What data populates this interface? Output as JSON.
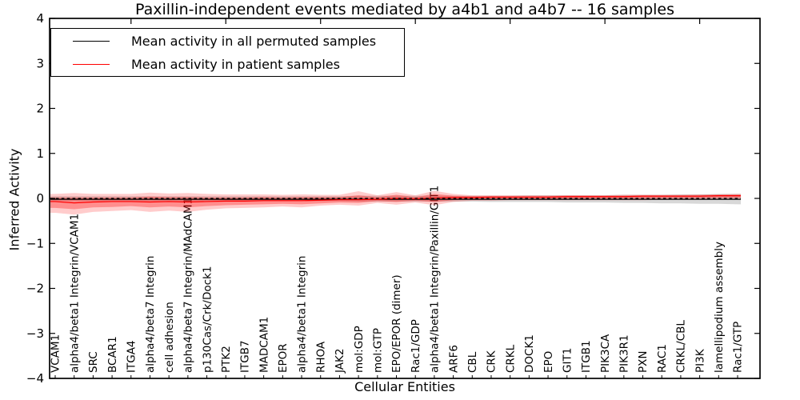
{
  "title": "Paxillin-independent events mediated by a4b1 and a4b7 -- 16 samples",
  "legend": {
    "items": [
      {
        "label": "Mean activity in all permuted samples",
        "color": "#000000"
      },
      {
        "label": "Mean activity in patient samples",
        "color": "#ff0000"
      }
    ]
  },
  "chart_data": {
    "type": "line",
    "title": "Paxillin-independent events mediated by a4b1 and a4b7 -- 16 samples",
    "xlabel": "Cellular Entities",
    "ylabel": "Inferred Activity",
    "ylim": [
      -4,
      4
    ],
    "yticks": [
      -4,
      -3,
      -2,
      -1,
      0,
      1,
      2,
      3,
      4
    ],
    "grid": false,
    "legend_position": "upper left",
    "top_tick_indices": [
      4,
      9,
      14,
      19,
      24,
      29,
      34
    ],
    "categories": [
      "VCAM1",
      "alpha4/beta1 Integrin/VCAM1",
      "SRC",
      "BCAR1",
      "ITGA4",
      "alpha4/beta7 Integrin",
      "cell adhesion",
      "alpha4/beta7 Integrin/MAdCAM1",
      "p130Cas/Crk/Dock1",
      "PTK2",
      "ITGB7",
      "MADCAM1",
      "EPOR",
      "alpha4/beta1 Integrin",
      "RHOA",
      "JAK2",
      "mol:GDP",
      "mol:GTP",
      "EPO/EPOR (dimer)",
      "Rac1/GDP",
      "alpha4/beta1 Integrin/Paxillin/GIT1",
      "ARF6",
      "CBL",
      "CRK",
      "CRKL",
      "DOCK1",
      "EPO",
      "GIT1",
      "ITGB1",
      "PIK3CA",
      "PIK3R1",
      "PXN",
      "RAC1",
      "CRKL/CBL",
      "PI3K",
      "lamellipodium assembly",
      "Rac1/GTP"
    ],
    "series": [
      {
        "name": "Mean activity in all permuted samples",
        "color": "#000000",
        "style": "solid",
        "values": [
          -0.02,
          -0.02,
          -0.02,
          -0.02,
          -0.02,
          -0.02,
          -0.02,
          -0.02,
          -0.02,
          -0.02,
          -0.02,
          -0.02,
          -0.02,
          -0.02,
          -0.02,
          -0.02,
          -0.02,
          -0.02,
          -0.02,
          -0.02,
          -0.02,
          -0.02,
          -0.02,
          -0.02,
          -0.02,
          -0.02,
          -0.02,
          -0.02,
          -0.02,
          -0.02,
          -0.02,
          -0.02,
          -0.02,
          -0.02,
          -0.02,
          -0.02,
          -0.02
        ]
      },
      {
        "name": "Mean activity in patient samples",
        "color": "#ff0000",
        "style": "solid",
        "values": [
          -0.07,
          -0.1,
          -0.08,
          -0.07,
          -0.07,
          -0.08,
          -0.07,
          -0.08,
          -0.07,
          -0.06,
          -0.06,
          -0.05,
          -0.05,
          -0.05,
          -0.04,
          -0.03,
          -0.03,
          -0.02,
          0.0,
          -0.01,
          0.01,
          0.02,
          0.02,
          0.03,
          0.03,
          0.03,
          0.03,
          0.04,
          0.04,
          0.04,
          0.04,
          0.05,
          0.05,
          0.05,
          0.05,
          0.06,
          0.06
        ]
      }
    ],
    "zero_line": {
      "y": 0,
      "style": "dashed",
      "color": "#000000"
    },
    "bands": [
      {
        "name": "permuted-range",
        "color": "#999999",
        "opacity": 0.38,
        "hi": [
          0.05,
          0.05,
          0.05,
          0.05,
          0.05,
          0.05,
          0.05,
          0.05,
          0.05,
          0.05,
          0.05,
          0.05,
          0.05,
          0.05,
          0.05,
          0.05,
          0.06,
          0.06,
          0.06,
          0.06,
          0.06,
          0.06,
          0.06,
          0.06,
          0.06,
          0.07,
          0.07,
          0.07,
          0.07,
          0.07,
          0.08,
          0.08,
          0.08,
          0.09,
          0.09,
          0.1,
          0.1
        ],
        "lo": [
          -0.06,
          -0.06,
          -0.06,
          -0.06,
          -0.06,
          -0.06,
          -0.06,
          -0.06,
          -0.06,
          -0.06,
          -0.06,
          -0.06,
          -0.06,
          -0.06,
          -0.06,
          -0.06,
          -0.07,
          -0.07,
          -0.07,
          -0.07,
          -0.07,
          -0.07,
          -0.07,
          -0.08,
          -0.08,
          -0.08,
          -0.08,
          -0.09,
          -0.09,
          -0.09,
          -0.1,
          -0.1,
          -0.11,
          -0.11,
          -0.12,
          -0.12,
          -0.13
        ]
      },
      {
        "name": "patient-range-outer",
        "color": "#ff0000",
        "opacity": 0.2,
        "hi": [
          0.1,
          0.12,
          0.1,
          0.1,
          0.1,
          0.13,
          0.11,
          0.12,
          0.1,
          0.09,
          0.09,
          0.09,
          0.08,
          0.09,
          0.08,
          0.08,
          0.16,
          0.07,
          0.14,
          0.07,
          0.17,
          0.1,
          0.07,
          0.07,
          0.07,
          0.07,
          0.07,
          0.07,
          0.07,
          0.07,
          0.08,
          0.08,
          0.08,
          0.08,
          0.09,
          0.09,
          0.1
        ],
        "lo": [
          -0.32,
          -0.36,
          -0.3,
          -0.28,
          -0.26,
          -0.3,
          -0.27,
          -0.3,
          -0.25,
          -0.22,
          -0.21,
          -0.2,
          -0.18,
          -0.2,
          -0.16,
          -0.14,
          -0.16,
          -0.1,
          -0.14,
          -0.09,
          -0.15,
          -0.08,
          -0.05,
          -0.05,
          -0.04,
          -0.04,
          -0.04,
          -0.04,
          -0.04,
          -0.04,
          -0.04,
          -0.04,
          -0.03,
          -0.03,
          -0.03,
          -0.02,
          -0.02
        ]
      },
      {
        "name": "patient-range-inner",
        "color": "#ff0000",
        "opacity": 0.3,
        "hi": [
          0.02,
          0.02,
          0.02,
          0.02,
          0.02,
          0.04,
          0.03,
          0.03,
          0.02,
          0.02,
          0.02,
          0.03,
          0.02,
          0.03,
          0.03,
          0.03,
          0.07,
          0.03,
          0.08,
          0.03,
          0.1,
          0.06,
          0.05,
          0.05,
          0.05,
          0.05,
          0.05,
          0.06,
          0.06,
          0.06,
          0.06,
          0.07,
          0.07,
          0.07,
          0.07,
          0.08,
          0.08
        ],
        "lo": [
          -0.21,
          -0.24,
          -0.2,
          -0.19,
          -0.17,
          -0.2,
          -0.18,
          -0.2,
          -0.17,
          -0.15,
          -0.14,
          -0.13,
          -0.12,
          -0.13,
          -0.11,
          -0.09,
          -0.1,
          -0.06,
          -0.08,
          -0.05,
          -0.08,
          -0.04,
          -0.02,
          -0.01,
          -0.01,
          -0.01,
          -0.01,
          0.0,
          0.0,
          0.0,
          0.0,
          0.0,
          0.01,
          0.01,
          0.01,
          0.02,
          0.02
        ]
      }
    ]
  }
}
